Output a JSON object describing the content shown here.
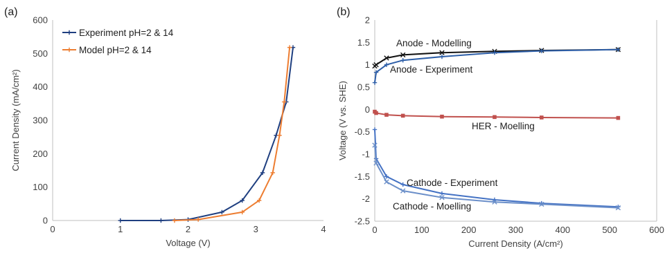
{
  "panels": {
    "a": "(a)",
    "b": "(b)"
  },
  "chart_data": [
    {
      "type": "line",
      "panel_label": "(a)",
      "xlabel": "Voltage (V)",
      "ylabel": "Current Density (mA/cm²)",
      "xlim": [
        0,
        4
      ],
      "ylim": [
        0,
        600
      ],
      "xticks": [
        0,
        1,
        2,
        3,
        4
      ],
      "yticks": [
        0,
        100,
        200,
        300,
        400,
        500,
        600
      ],
      "grid": false,
      "legend_position": "top-left",
      "series": [
        {
          "name": "Experiment pH=2 & 14",
          "color": "#1f3f80",
          "marker": "plus",
          "x": [
            1.0,
            1.6,
            2.0,
            2.5,
            2.8,
            3.1,
            3.3,
            3.45,
            3.55
          ],
          "y": [
            0,
            0,
            3,
            25,
            60,
            143,
            255,
            355,
            518
          ]
        },
        {
          "name": "Model pH=2 & 14",
          "color": "#ed7d31",
          "marker": "plus",
          "x": [
            1.8,
            2.15,
            2.8,
            3.05,
            3.25,
            3.35,
            3.42,
            3.5
          ],
          "y": [
            0,
            3,
            25,
            60,
            143,
            255,
            355,
            518
          ]
        }
      ]
    },
    {
      "type": "line",
      "panel_label": "(b)",
      "xlabel": "Current Density (A/cm²)",
      "ylabel": "Voltage (V vs. SHE)",
      "xlim": [
        0,
        600
      ],
      "ylim": [
        -2.5,
        2
      ],
      "xticks": [
        0,
        100,
        200,
        300,
        400,
        500,
        600
      ],
      "yticks": [
        -2.5,
        -2,
        -1.5,
        -1,
        -0.5,
        0,
        0.5,
        1,
        1.5,
        2
      ],
      "grid": false,
      "series": [
        {
          "name": "Anode - Modelling",
          "color": "#111111",
          "marker": "x",
          "x": [
            0,
            3,
            25,
            60,
            143,
            255,
            355,
            518
          ],
          "y": [
            0.97,
            1.0,
            1.15,
            1.22,
            1.27,
            1.3,
            1.32,
            1.34
          ]
        },
        {
          "name": "Anode - Experiment",
          "color": "#2e5fa8",
          "marker": "plus",
          "x": [
            0,
            3,
            25,
            60,
            143,
            255,
            355,
            518
          ],
          "y": [
            0.6,
            0.83,
            1.0,
            1.1,
            1.18,
            1.27,
            1.31,
            1.34
          ]
        },
        {
          "name": "HER - Moelling",
          "color": "#c0504d",
          "marker": "square",
          "x": [
            0,
            3,
            25,
            60,
            143,
            255,
            355,
            518
          ],
          "y": [
            -0.05,
            -0.08,
            -0.12,
            -0.14,
            -0.16,
            -0.17,
            -0.18,
            -0.19
          ]
        },
        {
          "name": "Cathode - Experiment",
          "color": "#4472c4",
          "marker": "plus",
          "x": [
            0,
            3,
            25,
            60,
            143,
            255,
            355,
            518
          ],
          "y": [
            -0.45,
            -1.1,
            -1.5,
            -1.68,
            -1.88,
            -2.02,
            -2.1,
            -2.18
          ]
        },
        {
          "name": "Cathode - Moelling",
          "color": "#6b8fc9",
          "marker": "x",
          "x": [
            0,
            3,
            25,
            60,
            143,
            255,
            355,
            518
          ],
          "y": [
            -0.8,
            -1.2,
            -1.62,
            -1.82,
            -1.97,
            -2.07,
            -2.12,
            -2.2
          ]
        }
      ]
    }
  ]
}
